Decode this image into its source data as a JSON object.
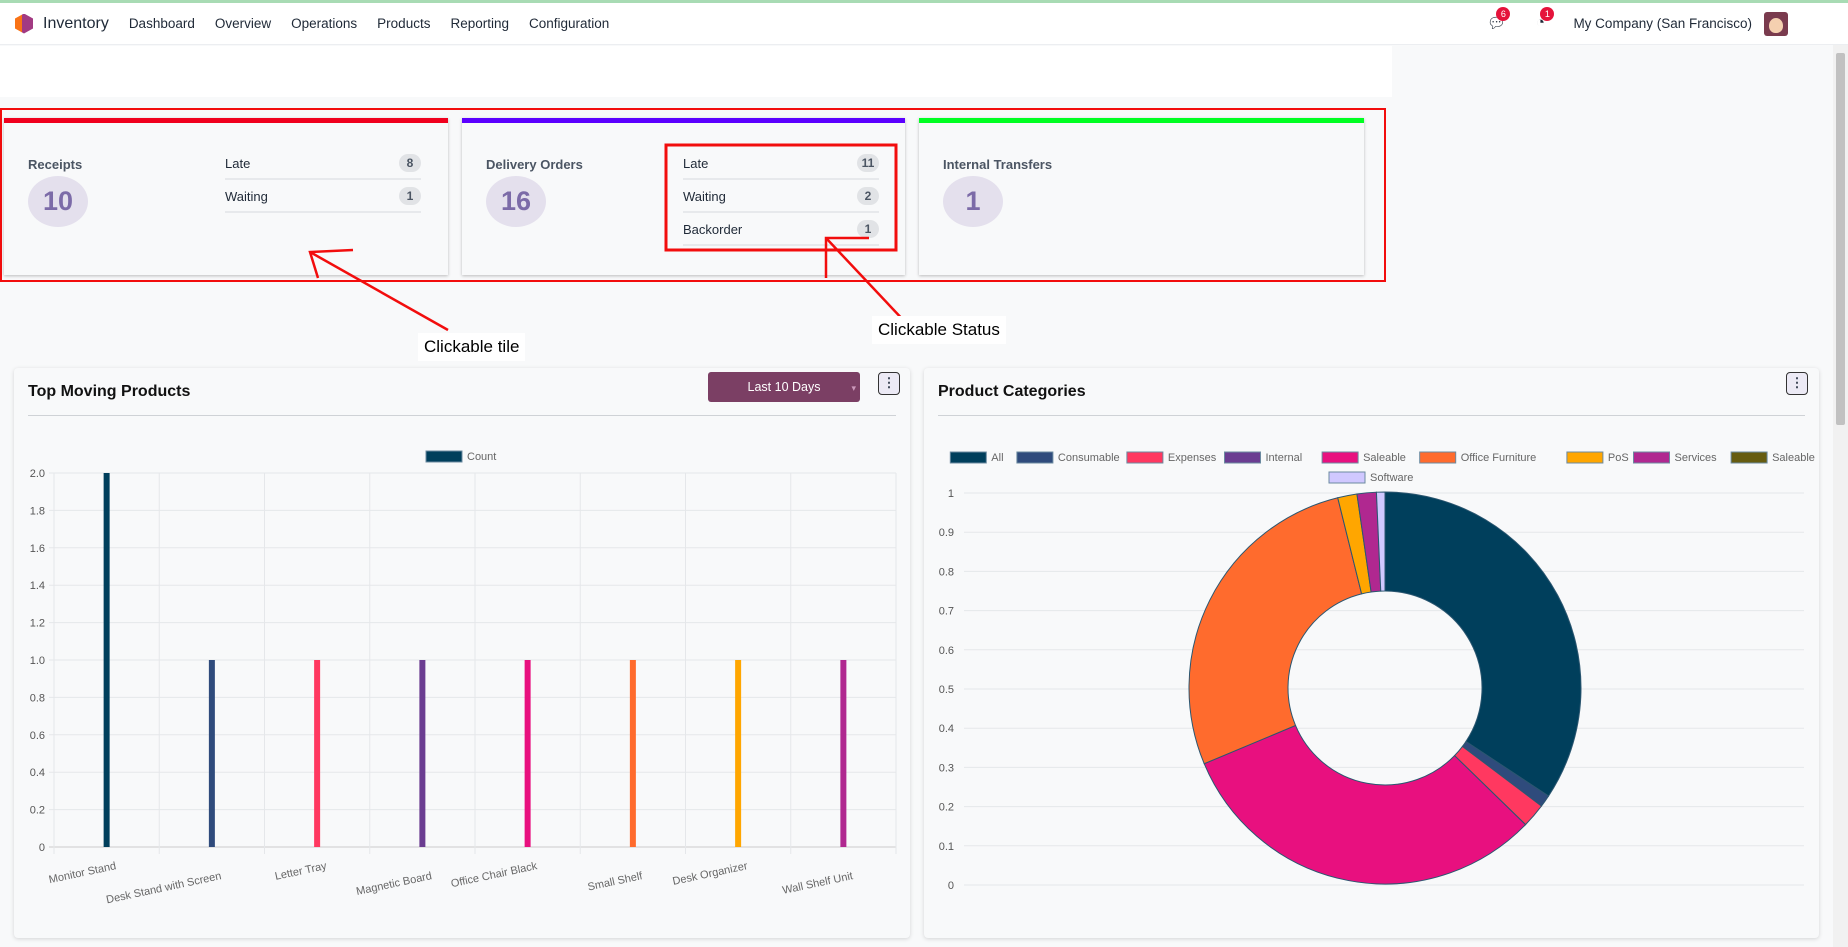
{
  "navbar": {
    "app": "Inventory",
    "menu": [
      "Dashboard",
      "Overview",
      "Operations",
      "Products",
      "Reporting",
      "Configuration"
    ],
    "messages_badge": "6",
    "activity_badge": "1",
    "company": "My Company (San Francisco)"
  },
  "tiles": [
    {
      "title": "Receipts",
      "count": "10",
      "color": "#f0001e",
      "statuses": [
        {
          "label": "Late",
          "count": "8"
        },
        {
          "label": "Waiting",
          "count": "1"
        }
      ]
    },
    {
      "title": "Delivery Orders",
      "count": "16",
      "color": "#5b00ff",
      "statuses": [
        {
          "label": "Late",
          "count": "11"
        },
        {
          "label": "Waiting",
          "count": "2"
        },
        {
          "label": "Backorder",
          "count": "1"
        }
      ]
    },
    {
      "title": "Internal Transfers",
      "count": "1",
      "color": "#00ff22",
      "statuses": []
    }
  ],
  "annotations": {
    "tile": "Clickable tile",
    "status": "Clickable Status"
  },
  "top_moving": {
    "title": "Top Moving Products",
    "filter": "Last 10 Days",
    "menu_icon": "kebab-icon"
  },
  "categories_panel": {
    "title": "Product Categories",
    "menu_icon": "kebab-icon"
  },
  "chart_data": [
    {
      "type": "bar",
      "legend": [
        "Count"
      ],
      "categories": [
        "Monitor Stand",
        "Desk Stand with Screen",
        "Letter Tray",
        "Magnetic Board",
        "Office Chair Black",
        "Small Shelf",
        "Desk Organizer",
        "Wall Shelf Unit"
      ],
      "series": [
        {
          "name": "Count",
          "values": [
            2,
            1,
            1,
            1,
            1,
            1,
            1,
            1
          ]
        }
      ],
      "colors": [
        "#003f5c",
        "#2f4b7c",
        "#ff3860",
        "#6b3d91",
        "#e8107f",
        "#ff6b2d",
        "#ffa600",
        "#b02890"
      ],
      "ylim": [
        0,
        2
      ],
      "yticks": [
        "0",
        "0.2",
        "0.4",
        "0.6",
        "0.8",
        "1.0",
        "1.2",
        "1.4",
        "1.6",
        "1.8",
        "2.0"
      ],
      "grid": true,
      "legend_position": "top"
    },
    {
      "type": "pie",
      "donut": true,
      "labels": [
        "All",
        "Consumable",
        "Expenses",
        "Internal",
        "Saleable",
        "Office Furniture",
        "PoS",
        "Services",
        "Saleable",
        "Software"
      ],
      "values": [
        34.5,
        1,
        2,
        0,
        31.6,
        27.6,
        1.6,
        1.6,
        0,
        0.7
      ],
      "colors": [
        "#003f5c",
        "#2f4b7c",
        "#ff3860",
        "#6b3d91",
        "#e8107f",
        "#ff6b2d",
        "#ffa600",
        "#b02890",
        "#665c10",
        "#d0c8ff"
      ],
      "yticks": [
        "0",
        "0.1",
        "0.2",
        "0.3",
        "0.4",
        "0.5",
        "0.6",
        "0.7",
        "0.8",
        "0.9",
        "1"
      ],
      "legend_position": "top"
    }
  ]
}
